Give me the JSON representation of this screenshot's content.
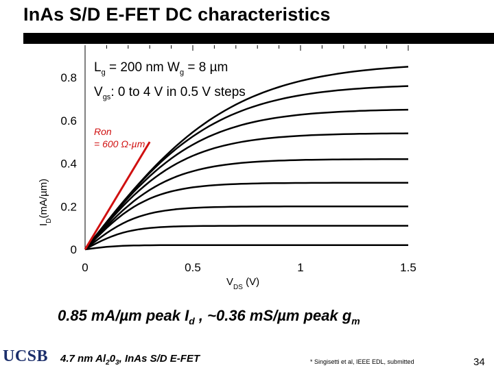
{
  "title": "InAs S/D E-FET DC characteristics",
  "chart_data": {
    "type": "line",
    "x_tick_labels": [
      "0",
      "0.5",
      "1",
      "1.5"
    ],
    "y_tick_labels": [
      "0",
      "0.2",
      "0.4",
      "0.6",
      "0.8"
    ],
    "xlim": [
      0,
      1.5
    ],
    "ylim": [
      0,
      0.95
    ],
    "xlabel": "V",
    "xlabel_sub": "DS",
    "xlabel_unit": "(V)",
    "ylabel_parts": [
      "I",
      "D",
      "(mA/",
      "µm",
      ")"
    ],
    "annotation": {
      "line1_a": "L",
      "line1_a_sub": "g",
      "line1_b": " = 200 nm W",
      "line1_b_sub": "g",
      "line1_c": " = 8 µm",
      "line2_a": "V",
      "line2_a_sub": "gs",
      "line2_b": ": 0 to 4 V in 0.5 V steps"
    },
    "ron_label": "Ron",
    "ron_value": "= 600 Ω-µm",
    "ron_line": {
      "x": [
        0,
        0.3
      ],
      "y": [
        0,
        0.5
      ],
      "color": "#d01010"
    },
    "grid": false,
    "series_values_at_Vds_1_5": [
      0.02,
      0.11,
      0.2,
      0.31,
      0.42,
      0.54,
      0.65,
      0.76,
      0.85
    ],
    "series_knee_Vds": [
      0.15,
      0.2,
      0.25,
      0.3,
      0.38,
      0.45,
      0.52,
      0.6,
      0.68
    ],
    "series_color": "#000000"
  },
  "summary": {
    "a": "0.85 mA/µm peak I",
    "a_sub": "d",
    "b": "  , ~0.36 mS/µm peak g",
    "b_sub": "m"
  },
  "footer": {
    "a": "4.7 nm Al",
    "a_sub1": "2",
    "b": "0",
    "b_sub": "3",
    "c": ", InAs S/D E-FET"
  },
  "citation": "* Singisetti et al, IEEE EDL, submitted",
  "logo": "UCSB",
  "page_number": "34"
}
